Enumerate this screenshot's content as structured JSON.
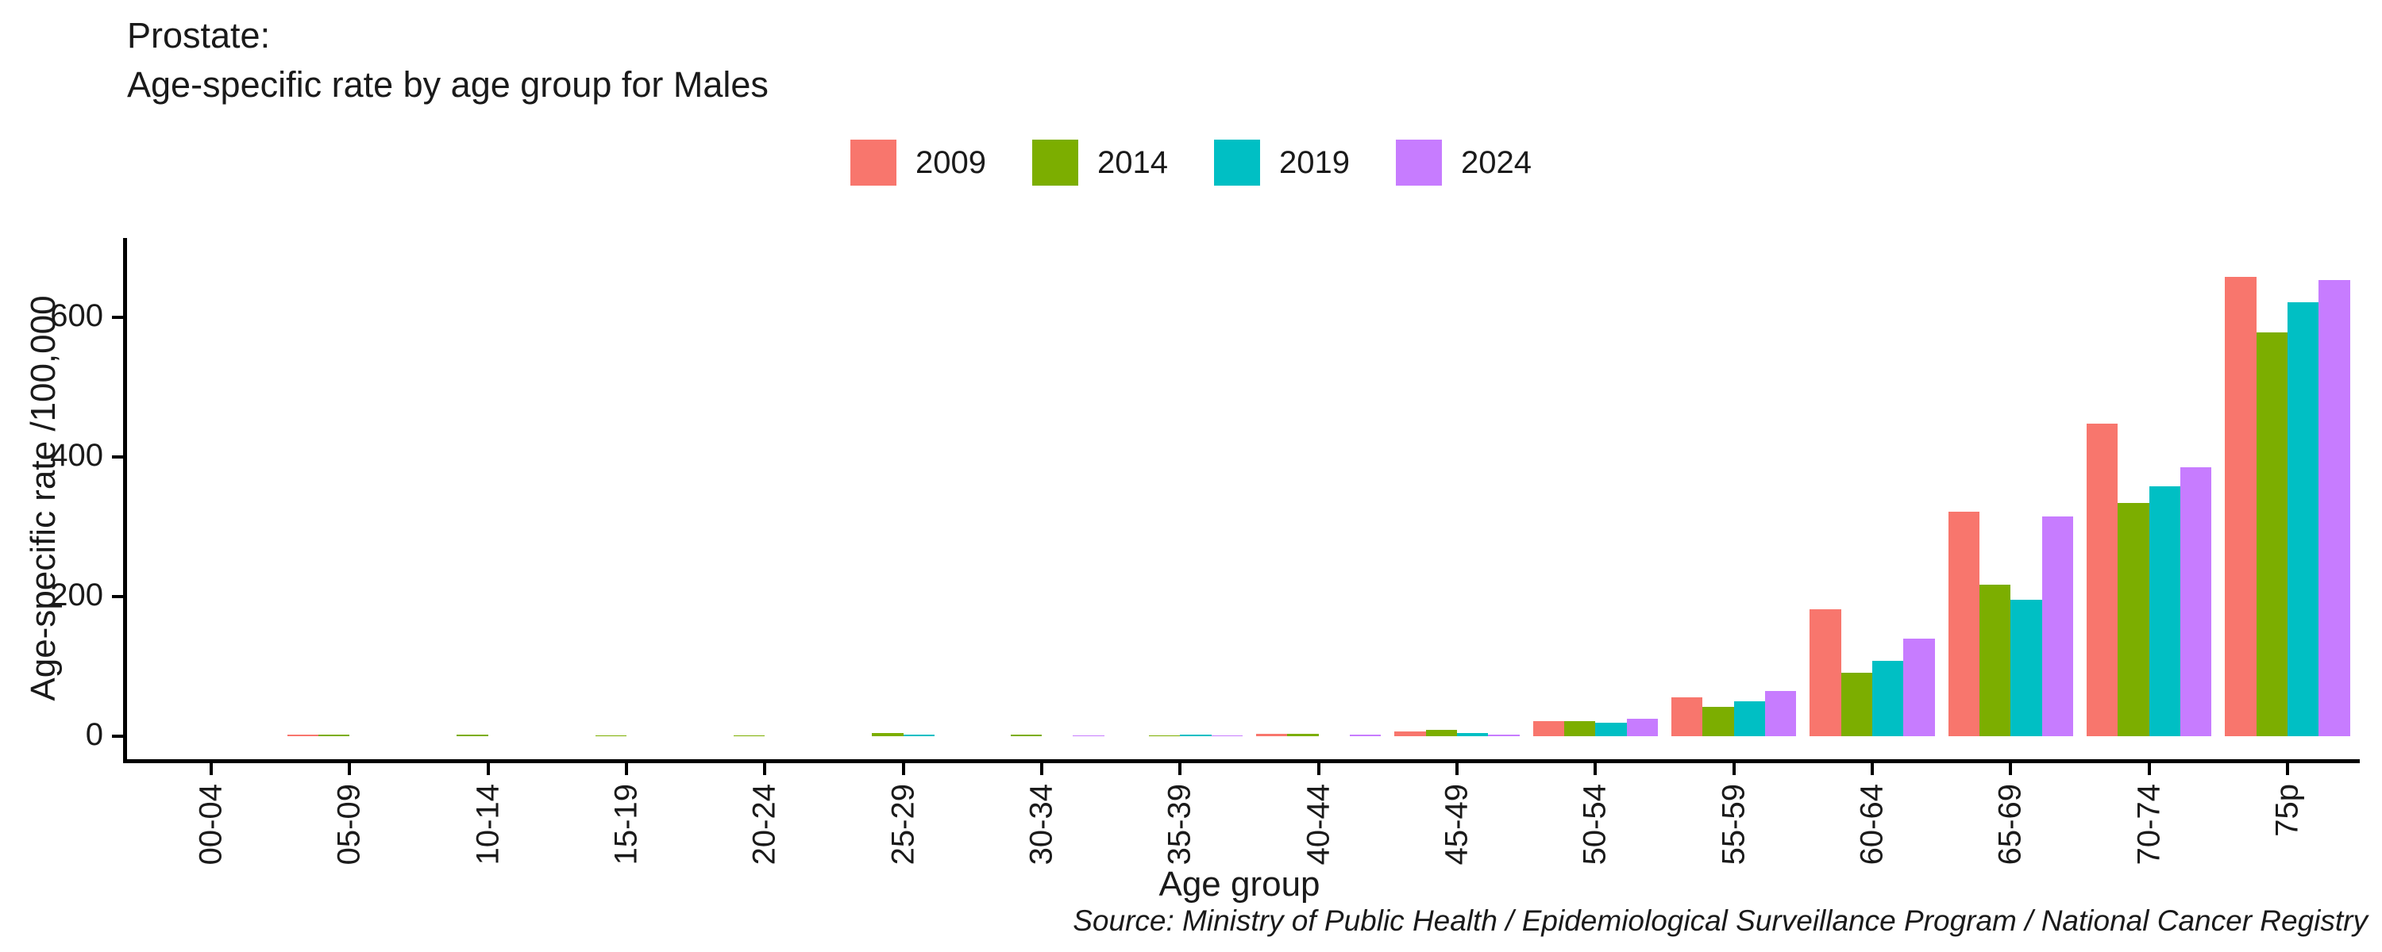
{
  "title": {
    "line1": "Prostate:",
    "line2": "Age-specific rate by age group for Males"
  },
  "chart_data": {
    "type": "bar",
    "title": "Prostate: Age-specific rate by age group for Males",
    "xlabel": "Age group",
    "ylabel": "Age-specific rate /100,000",
    "categories": [
      "00-04",
      "05-09",
      "10-14",
      "15-19",
      "20-24",
      "25-29",
      "30-34",
      "35-39",
      "40-44",
      "45-49",
      "50-54",
      "55-59",
      "60-64",
      "65-69",
      "70-74",
      "75p"
    ],
    "series": [
      {
        "name": "2009",
        "color": "#F8766D",
        "values": [
          0,
          2,
          0,
          0,
          0,
          0,
          0,
          0,
          3,
          7,
          21,
          55,
          182,
          321,
          447,
          658
        ]
      },
      {
        "name": "2014",
        "color": "#7CAE00",
        "values": [
          0,
          2,
          2,
          1,
          1,
          4,
          2,
          1,
          3,
          9,
          21,
          42,
          91,
          217,
          334,
          578
        ]
      },
      {
        "name": "2019",
        "color": "#00BFC4",
        "values": [
          0,
          0,
          0,
          0,
          0,
          2,
          0,
          2,
          0,
          4,
          19,
          50,
          108,
          195,
          358,
          621
        ]
      },
      {
        "name": "2024",
        "color": "#C77CFF",
        "values": [
          0,
          0,
          0,
          0,
          0,
          0,
          1,
          1,
          2,
          2,
          25,
          64,
          140,
          314,
          385,
          653
        ]
      }
    ],
    "yticks": [
      0,
      200,
      400,
      600
    ],
    "ylim": [
      0,
      700
    ],
    "grid": false,
    "legend_position": "top",
    "bar_orientation": "vertical-grouped"
  },
  "source": "Source: Ministry of Public Health / Epidemiological Surveillance Program / National Cancer Registry"
}
